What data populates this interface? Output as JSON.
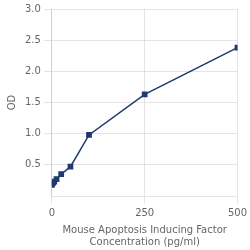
{
  "chart_data": {
    "type": "line",
    "x": [
      0,
      3.125,
      6.25,
      12.5,
      25,
      50,
      100,
      250,
      500
    ],
    "values": [
      0.18,
      0.21,
      0.23,
      0.27,
      0.35,
      0.47,
      0.98,
      1.63,
      2.38
    ],
    "color": "#1f3a6e",
    "marker": "square",
    "xlabel": "Mouse Apoptosis Inducing Factor\nConcentration (pg/ml)",
    "ylabel": "OD",
    "xlim": [
      0,
      500
    ],
    "xticks": [
      0,
      250,
      500
    ],
    "ylim": [
      0,
      3.0
    ],
    "yticks": [
      0.5,
      {
        "value": 1,
        "label": "1.0"
      },
      1.5,
      {
        "value": 2,
        "label": "2.0"
      },
      2.5,
      {
        "value": 3,
        "label": "3.0"
      }
    ],
    "grid": true
  }
}
